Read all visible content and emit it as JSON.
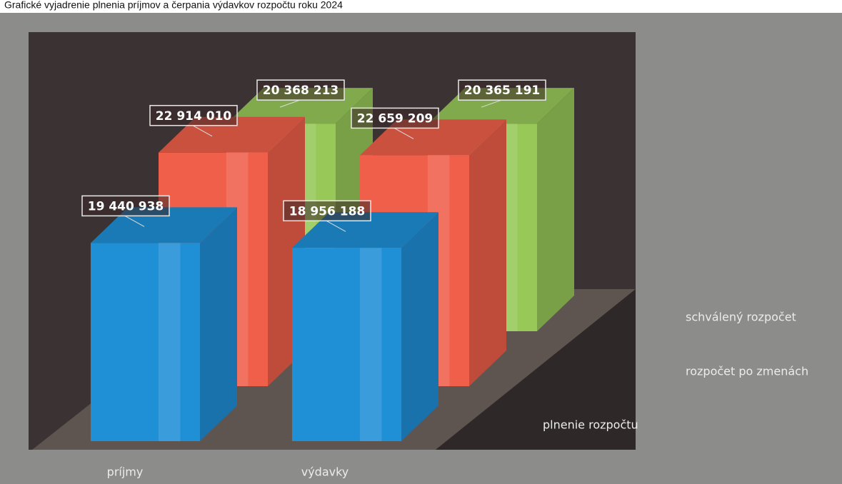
{
  "chart_data": {
    "type": "bar3d",
    "title": "Grafické vyjadrenie plnenia príjmov a čerpania výdavkov rozpočtu roku 2024",
    "categories": [
      "príjmy",
      "výdavky"
    ],
    "ylim": [
      0,
      25000000
    ],
    "series": [
      {
        "name": "plnenie rozpočtu",
        "color": "#1f8fd6",
        "values": [
          19440938,
          18956188
        ],
        "value_labels": [
          "19 440 938",
          "18 956 188"
        ]
      },
      {
        "name": "rozpočet po zmenách",
        "color": "#ef5f4a",
        "values": [
          22914010,
          22659209
        ],
        "value_labels": [
          "22 914 010",
          "22 659 209"
        ]
      },
      {
        "name": "schválený rozpočet",
        "color": "#97c858",
        "values": [
          20368213,
          20365191
        ],
        "value_labels": [
          "20 368 213",
          "20 365 191"
        ]
      }
    ]
  }
}
